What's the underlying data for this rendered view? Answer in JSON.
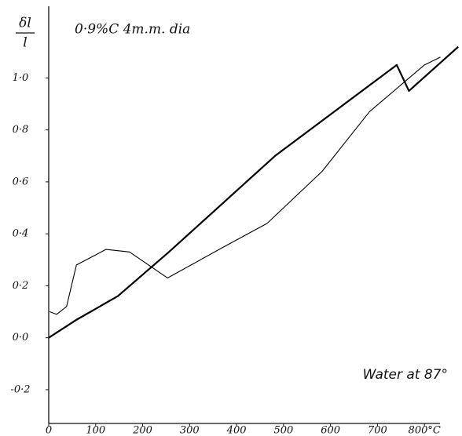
{
  "chart_data": {
    "type": "line",
    "title": "0·9%C 4m.m. dia",
    "y_label_top": "δl",
    "y_label_bottom": "l",
    "annotation": "Water at 87°",
    "xlim": [
      0,
      880
    ],
    "ylim": [
      -0.33,
      1.3
    ],
    "xticks": [
      0,
      100,
      200,
      300,
      400,
      500,
      600,
      700,
      {
        "value": 800,
        "label": "800°C"
      }
    ],
    "yticks": [
      {
        "value": 1.0,
        "label": "1·0"
      },
      {
        "value": 0.8,
        "label": "0·8"
      },
      {
        "value": 0.6,
        "label": "0·6"
      },
      {
        "value": 0.4,
        "label": "0·4"
      },
      {
        "value": 0.2,
        "label": "0·2"
      },
      {
        "value": 0.0,
        "label": "0·0"
      },
      {
        "value": -0.2,
        "label": "-0·2"
      }
    ],
    "grid": false,
    "series": [
      {
        "color": "#000000",
        "width": 2.2,
        "x": [
          0,
          60,
          147,
          256,
          482,
          741,
          767,
          872
        ],
        "values": [
          0.0,
          0.07,
          0.16,
          0.33,
          0.7,
          1.05,
          0.95,
          1.12
        ]
      },
      {
        "color": "#000000",
        "width": 1.1,
        "x": [
          2,
          17,
          38,
          59,
          122,
          172,
          253,
          373,
          465,
          582,
          683,
          800,
          834
        ],
        "values": [
          0.1,
          0.09,
          0.12,
          0.28,
          0.34,
          0.33,
          0.23,
          0.35,
          0.44,
          0.64,
          0.87,
          1.05,
          1.08
        ]
      }
    ]
  }
}
